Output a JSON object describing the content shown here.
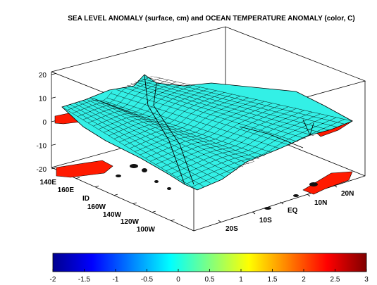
{
  "chart_data": {
    "type": "surface",
    "title": "SEA LEVEL ANOMALY (surface, cm) and OCEAN TEMPERATURE ANOMALY (color, C)",
    "z_axis": {
      "ticks": [
        "20",
        "10",
        "0",
        "-10",
        "-20"
      ],
      "range": [
        -20,
        20
      ]
    },
    "longitude_axis": {
      "ticks": [
        "140E",
        "160E",
        "ID",
        "160W",
        "140W",
        "120W",
        "100W"
      ]
    },
    "latitude_axis": {
      "ticks": [
        "20S",
        "10S",
        "EQ",
        "10N",
        "20N"
      ]
    },
    "colorbar": {
      "ticks": [
        "-2",
        "-1.5",
        "-1",
        "-0.5",
        "0",
        "0.5",
        "1",
        "1.5",
        "2",
        "2.5",
        "3"
      ],
      "range": [
        -2,
        3
      ],
      "colors": [
        "#00008f",
        "#0000ff",
        "#0080ff",
        "#00ffff",
        "#80ff80",
        "#ffff00",
        "#ff8000",
        "#ff0000",
        "#800000"
      ]
    },
    "surface_color": "#33f0e6",
    "land_color": "#ff1a00"
  }
}
